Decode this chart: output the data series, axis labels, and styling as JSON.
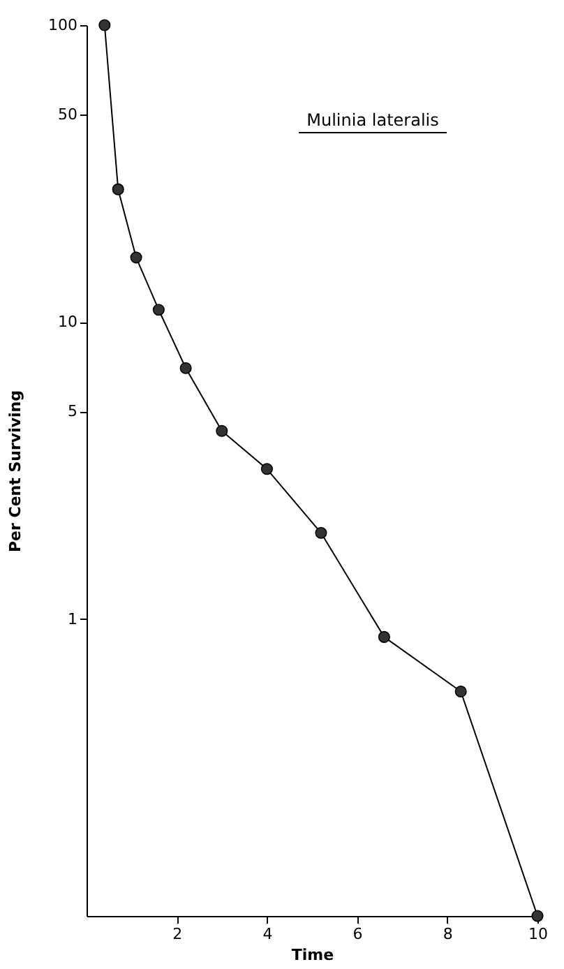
{
  "chart_data": {
    "type": "line",
    "xlabel": "Time",
    "ylabel": "Per Cent Surviving",
    "annotations": [
      "Mulinia lateralis"
    ],
    "x": [
      0.4,
      0.7,
      1.1,
      1.6,
      2.2,
      3.0,
      4.0,
      5.2,
      6.6,
      8.3,
      10
    ],
    "series": [
      {
        "color": "#333333",
        "values": [
          100,
          28,
          16.5,
          11,
          7,
          4.3,
          3.2,
          1.95,
          0.87,
          0.57,
          0.1
        ]
      }
    ],
    "log": "y",
    "marker": "circle",
    "line_style": "solid",
    "grid": false,
    "xlim": [
      0,
      10
    ],
    "xticks": [
      2,
      4,
      6,
      8,
      10
    ],
    "ylim": [
      0.1,
      100
    ],
    "yticks": [
      1,
      5,
      10,
      50,
      100
    ]
  }
}
